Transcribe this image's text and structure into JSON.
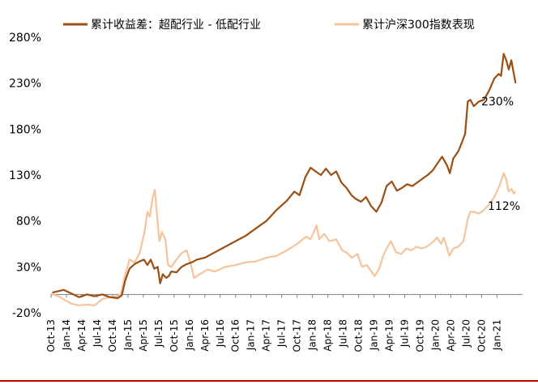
{
  "colors": {
    "excess_return": "#9a4f13",
    "csi300": "#f6c49c",
    "axis": "#7f7f7f",
    "frame_line": "#c00000"
  },
  "chart_data": {
    "type": "line",
    "title": "",
    "xlabel": "",
    "ylabel": "",
    "ylim": [
      -20,
      280
    ],
    "y_ticks": [
      "-20%",
      "30%",
      "80%",
      "130%",
      "180%",
      "230%",
      "280%"
    ],
    "y_tick_values": [
      -20,
      30,
      80,
      130,
      180,
      230,
      280
    ],
    "x_tick_labels": [
      "Oct-13",
      "Jan-14",
      "Apr-14",
      "Jul-14",
      "Oct-14",
      "Jan-15",
      "Apr-15",
      "Jul-15",
      "Oct-15",
      "Jan-16",
      "Apr-16",
      "Jul-16",
      "Oct-16",
      "Jan-17",
      "Apr-17",
      "Jul-17",
      "Oct-17",
      "Jan-18",
      "Apr-18",
      "Jul-18",
      "Oct-18",
      "Jan-19",
      "Apr-19",
      "Jul-19",
      "Oct-19",
      "Jan-20",
      "Apr-20",
      "Jul-20",
      "Oct-20",
      "Jan-21"
    ],
    "x_range": [
      "2013-10",
      "2021-06"
    ],
    "grid": false,
    "legend_position": "top",
    "series": [
      {
        "name": "累计收益差：超配行业 - 低配行业",
        "color": "#9a4f13",
        "end_label": "230%",
        "points": [
          [
            "2013-10-08",
            2
          ],
          [
            "2013-12-15",
            5
          ],
          [
            "2014-02-01",
            1
          ],
          [
            "2014-03-15",
            -3
          ],
          [
            "2014-05-01",
            0
          ],
          [
            "2014-06-15",
            -2
          ],
          [
            "2014-08-01",
            0
          ],
          [
            "2014-09-15",
            -3
          ],
          [
            "2014-11-01",
            -4
          ],
          [
            "2014-11-25",
            -1
          ],
          [
            "2014-12-15",
            15
          ],
          [
            "2015-01-10",
            28
          ],
          [
            "2015-02-10",
            33
          ],
          [
            "2015-03-10",
            36
          ],
          [
            "2015-04-05",
            38
          ],
          [
            "2015-04-25",
            32
          ],
          [
            "2015-05-15",
            38
          ],
          [
            "2015-06-05",
            28
          ],
          [
            "2015-06-25",
            30
          ],
          [
            "2015-07-10",
            12
          ],
          [
            "2015-07-25",
            22
          ],
          [
            "2015-08-15",
            18
          ],
          [
            "2015-08-30",
            20
          ],
          [
            "2015-09-15",
            25
          ],
          [
            "2015-10-15",
            24
          ],
          [
            "2015-11-15",
            30
          ],
          [
            "2015-12-15",
            33
          ],
          [
            "2016-01-15",
            35
          ],
          [
            "2016-02-15",
            38
          ],
          [
            "2016-04-01",
            40
          ],
          [
            "2016-06-01",
            46
          ],
          [
            "2016-08-01",
            52
          ],
          [
            "2016-10-01",
            58
          ],
          [
            "2016-12-01",
            64
          ],
          [
            "2017-02-01",
            72
          ],
          [
            "2017-04-01",
            80
          ],
          [
            "2017-06-01",
            92
          ],
          [
            "2017-08-01",
            102
          ],
          [
            "2017-09-15",
            112
          ],
          [
            "2017-10-15",
            108
          ],
          [
            "2017-11-20",
            128
          ],
          [
            "2017-12-20",
            138
          ],
          [
            "2018-01-20",
            134
          ],
          [
            "2018-02-20",
            130
          ],
          [
            "2018-03-20",
            137
          ],
          [
            "2018-04-20",
            130
          ],
          [
            "2018-05-20",
            134
          ],
          [
            "2018-06-20",
            122
          ],
          [
            "2018-07-20",
            116
          ],
          [
            "2018-08-20",
            108
          ],
          [
            "2018-09-15",
            104
          ],
          [
            "2018-10-15",
            101
          ],
          [
            "2018-11-15",
            106
          ],
          [
            "2018-12-15",
            96
          ],
          [
            "2019-01-15",
            90
          ],
          [
            "2019-02-15",
            100
          ],
          [
            "2019-03-15",
            118
          ],
          [
            "2019-04-15",
            123
          ],
          [
            "2019-05-15",
            113
          ],
          [
            "2019-06-15",
            116
          ],
          [
            "2019-07-15",
            120
          ],
          [
            "2019-08-15",
            118
          ],
          [
            "2019-09-15",
            122
          ],
          [
            "2019-10-15",
            126
          ],
          [
            "2019-11-15",
            130
          ],
          [
            "2019-12-15",
            135
          ],
          [
            "2020-01-10",
            142
          ],
          [
            "2020-02-10",
            150
          ],
          [
            "2020-03-10",
            140
          ],
          [
            "2020-03-25",
            132
          ],
          [
            "2020-04-15",
            148
          ],
          [
            "2020-05-15",
            156
          ],
          [
            "2020-06-05",
            165
          ],
          [
            "2020-06-25",
            175
          ],
          [
            "2020-07-10",
            210
          ],
          [
            "2020-07-25",
            212
          ],
          [
            "2020-08-15",
            205
          ],
          [
            "2020-09-15",
            210
          ],
          [
            "2020-10-15",
            212
          ],
          [
            "2020-11-15",
            222
          ],
          [
            "2020-12-15",
            235
          ],
          [
            "2021-01-10",
            240
          ],
          [
            "2021-01-25",
            238
          ],
          [
            "2021-02-10",
            262
          ],
          [
            "2021-02-25",
            255
          ],
          [
            "2021-03-10",
            245
          ],
          [
            "2021-03-25",
            255
          ],
          [
            "2021-04-10",
            240
          ],
          [
            "2021-04-20",
            230
          ]
        ]
      },
      {
        "name": "累计沪深300指数表现",
        "color": "#f6c49c",
        "end_label": "112%",
        "points": [
          [
            "2013-10-08",
            0
          ],
          [
            "2013-11-15",
            -2
          ],
          [
            "2013-12-20",
            -6
          ],
          [
            "2014-02-01",
            -10
          ],
          [
            "2014-03-15",
            -12
          ],
          [
            "2014-05-01",
            -11
          ],
          [
            "2014-06-15",
            -12
          ],
          [
            "2014-08-01",
            -5
          ],
          [
            "2014-09-15",
            -3
          ],
          [
            "2014-10-25",
            -2
          ],
          [
            "2014-11-20",
            0
          ],
          [
            "2014-12-10",
            18
          ],
          [
            "2015-01-10",
            38
          ],
          [
            "2015-02-10",
            35
          ],
          [
            "2015-03-10",
            45
          ],
          [
            "2015-04-10",
            70
          ],
          [
            "2015-04-25",
            90
          ],
          [
            "2015-05-10",
            85
          ],
          [
            "2015-05-25",
            105
          ],
          [
            "2015-06-08",
            114
          ],
          [
            "2015-06-20",
            90
          ],
          [
            "2015-07-05",
            58
          ],
          [
            "2015-07-20",
            68
          ],
          [
            "2015-08-10",
            60
          ],
          [
            "2015-08-26",
            32
          ],
          [
            "2015-09-15",
            30
          ],
          [
            "2015-10-15",
            38
          ],
          [
            "2015-11-15",
            45
          ],
          [
            "2015-12-15",
            48
          ],
          [
            "2016-01-10",
            32
          ],
          [
            "2016-01-28",
            18
          ],
          [
            "2016-03-01",
            22
          ],
          [
            "2016-04-15",
            27
          ],
          [
            "2016-06-01",
            25
          ],
          [
            "2016-08-01",
            30
          ],
          [
            "2016-10-01",
            32
          ],
          [
            "2016-12-01",
            35
          ],
          [
            "2017-02-01",
            36
          ],
          [
            "2017-04-01",
            40
          ],
          [
            "2017-06-01",
            42
          ],
          [
            "2017-08-01",
            48
          ],
          [
            "2017-10-01",
            55
          ],
          [
            "2017-11-25",
            63
          ],
          [
            "2017-12-20",
            60
          ],
          [
            "2018-01-25",
            75
          ],
          [
            "2018-02-10",
            60
          ],
          [
            "2018-03-10",
            66
          ],
          [
            "2018-04-10",
            58
          ],
          [
            "2018-05-20",
            60
          ],
          [
            "2018-06-25",
            48
          ],
          [
            "2018-07-25",
            45
          ],
          [
            "2018-08-20",
            40
          ],
          [
            "2018-09-25",
            44
          ],
          [
            "2018-10-20",
            30
          ],
          [
            "2018-11-20",
            32
          ],
          [
            "2018-12-20",
            24
          ],
          [
            "2019-01-05",
            20
          ],
          [
            "2019-02-01",
            28
          ],
          [
            "2019-02-25",
            42
          ],
          [
            "2019-03-15",
            50
          ],
          [
            "2019-04-10",
            58
          ],
          [
            "2019-05-10",
            46
          ],
          [
            "2019-06-10",
            44
          ],
          [
            "2019-07-10",
            50
          ],
          [
            "2019-08-10",
            48
          ],
          [
            "2019-09-10",
            52
          ],
          [
            "2019-10-10",
            50
          ],
          [
            "2019-11-10",
            52
          ],
          [
            "2019-12-10",
            56
          ],
          [
            "2020-01-10",
            62
          ],
          [
            "2020-02-05",
            55
          ],
          [
            "2020-02-20",
            62
          ],
          [
            "2020-03-23",
            42
          ],
          [
            "2020-04-15",
            50
          ],
          [
            "2020-05-15",
            52
          ],
          [
            "2020-06-15",
            58
          ],
          [
            "2020-07-10",
            82
          ],
          [
            "2020-07-25",
            90
          ],
          [
            "2020-08-15",
            90
          ],
          [
            "2020-09-15",
            88
          ],
          [
            "2020-10-15",
            92
          ],
          [
            "2020-11-15",
            98
          ],
          [
            "2020-12-15",
            106
          ],
          [
            "2021-01-15",
            118
          ],
          [
            "2021-02-10",
            132
          ],
          [
            "2021-02-25",
            125
          ],
          [
            "2021-03-10",
            112
          ],
          [
            "2021-03-25",
            115
          ],
          [
            "2021-04-10",
            110
          ],
          [
            "2021-04-20",
            112
          ]
        ]
      }
    ]
  }
}
